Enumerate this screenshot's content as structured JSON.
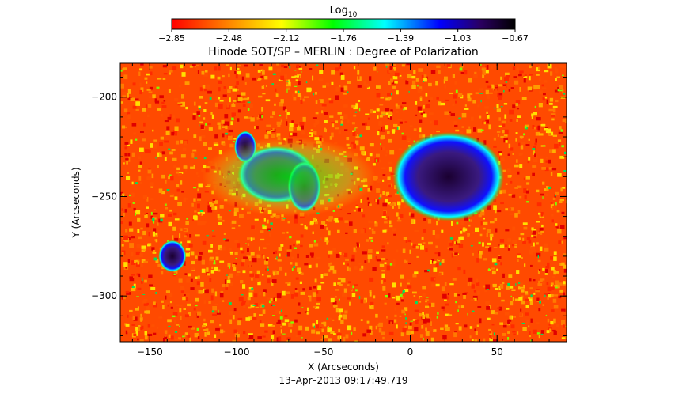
{
  "chart_data": {
    "type": "heatmap",
    "title": "Hinode SOT/SP – MERLIN : Degree of Polarization",
    "colorbar": {
      "label_main": "Log",
      "label_sub": "10",
      "ticks": [
        "−2.85",
        "−2.48",
        "−2.12",
        "−1.76",
        "−1.39",
        "−1.03",
        "−0.67"
      ],
      "range": [
        -2.85,
        -0.67
      ],
      "colors": [
        "#ff0000",
        "#ff8000",
        "#ffff00",
        "#00ff00",
        "#00ffff",
        "#0000ff",
        "#2a0060",
        "#000000"
      ]
    },
    "xlabel": "X (Arcseconds)",
    "ylabel": "Y (Arcseconds)",
    "xlim": [
      -167,
      90
    ],
    "ylim": [
      -323,
      -183
    ],
    "x_ticks": [
      {
        "value": -150,
        "label": "−150"
      },
      {
        "value": -100,
        "label": "−100"
      },
      {
        "value": -50,
        "label": "−50"
      },
      {
        "value": 0,
        "label": "0"
      },
      {
        "value": 50,
        "label": "50"
      }
    ],
    "y_ticks": [
      {
        "value": -200,
        "label": "−200"
      },
      {
        "value": -250,
        "label": "−250"
      },
      {
        "value": -300,
        "label": "−300"
      }
    ],
    "features": [
      {
        "name": "sunspot-main",
        "x": 22,
        "y": -240,
        "rx": 20,
        "ry": 14,
        "level": 1.0
      },
      {
        "name": "pore-left",
        "x": -137,
        "y": -280,
        "rx": 5,
        "ry": 5,
        "level": 0.95
      },
      {
        "name": "pore-cluster-a",
        "x": -77,
        "y": -239,
        "rx": 14,
        "ry": 9,
        "level": 0.85
      },
      {
        "name": "pore-cluster-b",
        "x": -61,
        "y": -245,
        "rx": 6,
        "ry": 8,
        "level": 0.8
      },
      {
        "name": "pore-cluster-c",
        "x": -95,
        "y": -225,
        "rx": 4,
        "ry": 5,
        "level": 0.7
      },
      {
        "name": "plage-band",
        "x": -70,
        "y": -240,
        "rx": 50,
        "ry": 20,
        "level": 0.45
      }
    ],
    "timestamp": "13–Apr–2013 09:17:49.719"
  }
}
